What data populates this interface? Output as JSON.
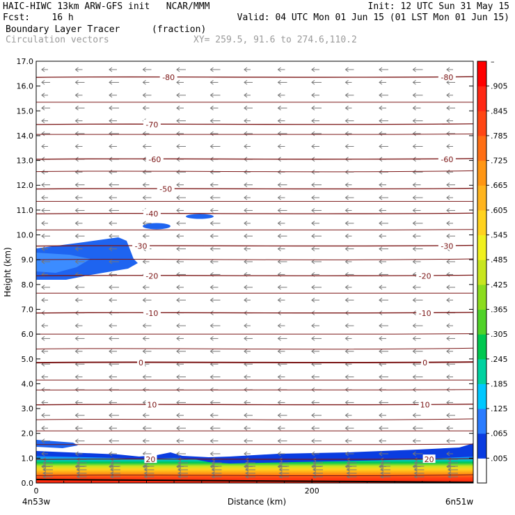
{
  "header": {
    "line1_left": "HAIC-HIWC 13km ARW-GFS init   NCAR/MMM",
    "line1_right": "Init: 12 UTC Sun 31 May 15",
    "line2_left": "Fcst:    16 h",
    "line2_right": "Valid: 04 UTC Mon 01 Jun 15 (01 LST Mon 01 Jun 15)",
    "line3_field": "Boundary Layer Tracer",
    "line3_units": "(fraction)",
    "line4_field": "Circulation vectors",
    "line4_xy": "XY= 259.5, 91.6 to 274.6,110.2"
  },
  "colors": {
    "isotherm": "#7a1414",
    "vector": "#777777",
    "tracer_blue_dark": "#0a3ce0",
    "tracer_blue_mid": "#1e64f0",
    "tracer_blue_light": "#3c8cff"
  },
  "chart_data": {
    "type": "heatmap",
    "title": "Boundary Layer Tracer",
    "units": "(fraction)",
    "xlabel": "Distance (km)",
    "ylabel": "Height (km)",
    "xlim": [
      0,
      317
    ],
    "ylim": [
      0,
      17
    ],
    "x_ticks": [
      0,
      200
    ],
    "y_ticks": [
      "0.0",
      "1.0",
      "2.0",
      "3.0",
      "4.0",
      "5.0",
      "6.0",
      "7.0",
      "8.0",
      "9.0",
      "10.0",
      "11.0",
      "12.0",
      "13.0",
      "14.0",
      "15.0",
      "16.0",
      "17.0"
    ],
    "endpoint_labels": {
      "left": "4n53w",
      "right": "6n51w"
    },
    "colorbar": {
      "labels": [
        ".005",
        ".065",
        ".125",
        ".185",
        ".245",
        ".305",
        ".365",
        ".425",
        ".485",
        ".545",
        ".605",
        ".665",
        ".725",
        ".785",
        ".845",
        ".905"
      ],
      "top_label": "–",
      "colors": [
        "#ffffff",
        "#0a3ce0",
        "#2a7cff",
        "#00c8ff",
        "#00d2a0",
        "#00c850",
        "#50d228",
        "#8cdc1e",
        "#c8e61e",
        "#f0f01e",
        "#ffd21e",
        "#ffb41e",
        "#ff9614",
        "#ff6e14",
        "#ff4614",
        "#ff2814",
        "#ff0000"
      ]
    },
    "isotherms": [
      {
        "label": "-80",
        "height_km": 16.35
      },
      {
        "label": "-70",
        "height_km": 14.45
      },
      {
        "label": "-60",
        "height_km": 13.05
      },
      {
        "label": "-50",
        "height_km": 11.85
      },
      {
        "label": "-40",
        "height_km": 10.85
      },
      {
        "label": "-30",
        "height_km": 9.55
      },
      {
        "label": "-20",
        "height_km": 8.35
      },
      {
        "label": "-10",
        "height_km": 6.85
      },
      {
        "label": "0",
        "height_km": 4.85
      },
      {
        "label": "10",
        "height_km": 3.15
      },
      {
        "label": "20",
        "height_km": 0.95
      }
    ],
    "isotherm_label_x_km": [
      [
        96,
        298
      ],
      [
        84
      ],
      [
        86,
        298
      ],
      [
        94
      ],
      [
        84
      ],
      [
        76,
        298
      ],
      [
        84,
        282
      ],
      [
        84,
        282
      ],
      [
        76,
        282
      ],
      [
        84,
        282
      ],
      [
        83,
        285
      ]
    ]
  }
}
